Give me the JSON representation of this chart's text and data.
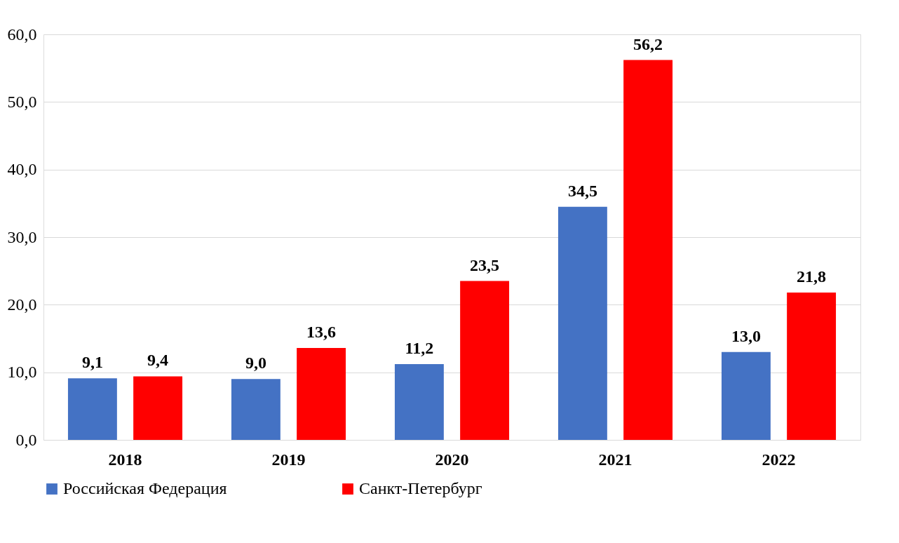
{
  "chart_data": {
    "type": "bar",
    "categories": [
      "2018",
      "2019",
      "2020",
      "2021",
      "2022"
    ],
    "series": [
      {
        "name": "Российская Федерация",
        "color": "#4472c4",
        "values": [
          9.1,
          9.0,
          11.2,
          34.5,
          13.0
        ],
        "value_labels": [
          "9,1",
          "9,0",
          "11,2",
          "34,5",
          "13,0"
        ]
      },
      {
        "name": "Санкт-Петербург",
        "color": "#ff0000",
        "values": [
          9.4,
          13.6,
          23.5,
          56.2,
          21.8
        ],
        "value_labels": [
          "9,4",
          "13,6",
          "23,5",
          "56,2",
          "21,8"
        ]
      }
    ],
    "ylim": [
      0,
      60
    ],
    "yticks": [
      {
        "value": 0,
        "label": "0,0"
      },
      {
        "value": 10,
        "label": "10,0"
      },
      {
        "value": 20,
        "label": "20,0"
      },
      {
        "value": 30,
        "label": "30,0"
      },
      {
        "value": 40,
        "label": "40,0"
      },
      {
        "value": 50,
        "label": "50,0"
      },
      {
        "value": 60,
        "label": "60,0"
      }
    ],
    "grid": "y",
    "legend": "bottom"
  }
}
